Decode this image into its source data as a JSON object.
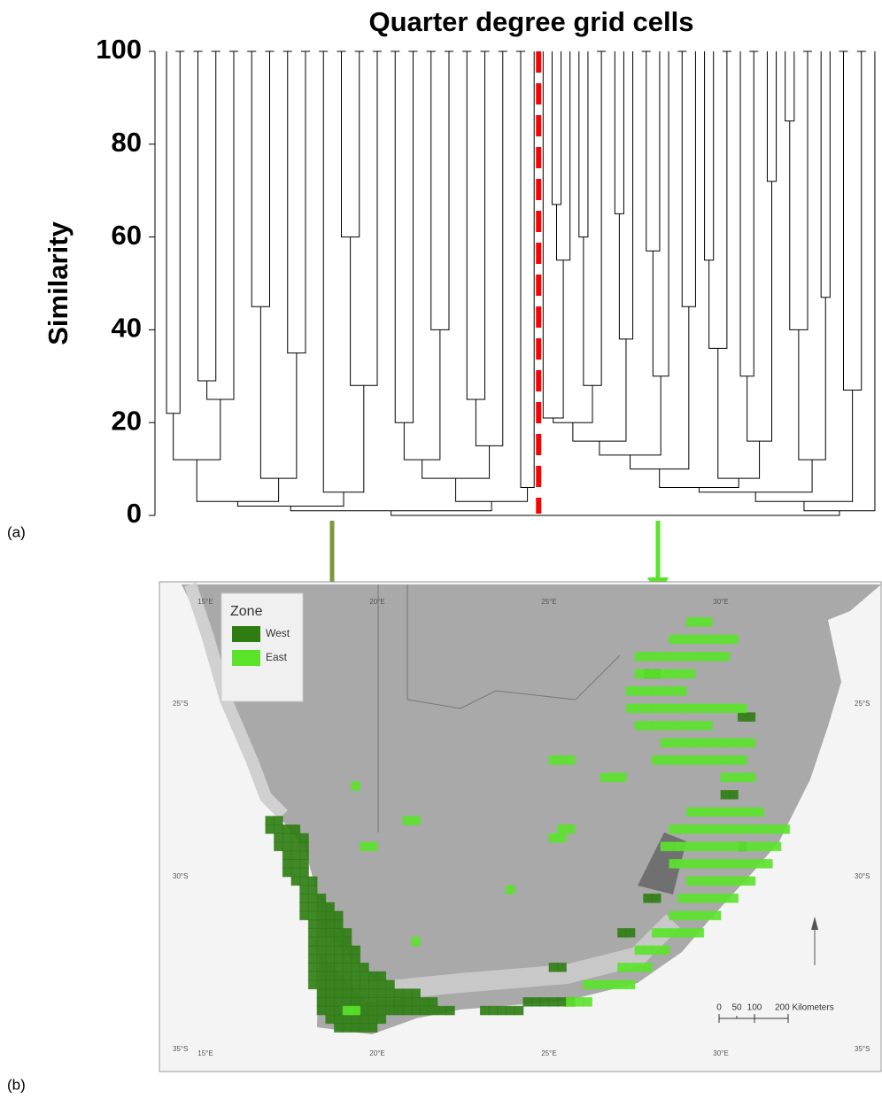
{
  "chart_data": {
    "type": "dendrogram",
    "title": "Quarter degree grid cells",
    "ylabel": "Similarity",
    "ylim": [
      0,
      100
    ],
    "yticks": [
      0,
      20,
      40,
      60,
      80,
      100
    ],
    "line_color": "#000000",
    "cut_color": "#ff0000",
    "merge_heights": [
      22,
      100,
      12,
      100,
      29,
      100,
      25,
      100,
      3,
      100,
      45,
      100,
      8,
      100,
      35,
      100,
      2,
      100,
      5,
      100,
      60,
      100,
      28,
      100,
      1,
      100,
      20,
      100,
      12,
      100,
      40,
      100,
      8,
      100,
      25,
      100,
      15,
      100,
      3,
      100,
      6,
      0,
      21,
      67,
      55,
      20,
      60,
      28,
      100,
      16,
      65,
      38,
      13,
      100,
      57,
      30,
      10,
      100,
      45,
      6,
      55,
      36,
      100,
      8,
      30,
      100,
      16,
      72,
      5,
      85,
      40,
      100,
      12,
      47,
      3,
      100,
      27,
      100,
      1
    ]
  },
  "panel_labels": [
    "(a)",
    "(b)"
  ],
  "map": {
    "legend_title": "Zone",
    "zones": [
      {
        "name": "West",
        "color": "#2e7d12",
        "rows": [
          [
            -28.25,
            16.75,
            17.0
          ],
          [
            -28.5,
            16.75,
            17.5
          ],
          [
            -28.75,
            17.0,
            17.75
          ],
          [
            -29.0,
            17.0,
            17.75
          ],
          [
            -29.25,
            17.25,
            17.75
          ],
          [
            -29.5,
            17.25,
            17.75
          ],
          [
            -29.75,
            17.25,
            17.75
          ],
          [
            -30.0,
            17.5,
            18.0
          ],
          [
            -30.25,
            17.75,
            18.0
          ],
          [
            -30.5,
            17.75,
            18.25
          ],
          [
            -30.75,
            17.75,
            18.5
          ],
          [
            -31.0,
            17.75,
            18.75
          ],
          [
            -31.25,
            18.0,
            18.75
          ],
          [
            -31.5,
            18.0,
            19.0
          ],
          [
            -31.75,
            18.0,
            19.0
          ],
          [
            -32.0,
            18.0,
            19.25
          ],
          [
            -32.25,
            18.0,
            19.25
          ],
          [
            -32.5,
            18.0,
            19.5
          ],
          [
            -32.75,
            18.0,
            20.0
          ],
          [
            -33.0,
            18.0,
            20.25
          ],
          [
            -33.25,
            18.25,
            21.0
          ],
          [
            -33.5,
            18.25,
            21.5
          ],
          [
            -33.75,
            18.25,
            22.0
          ],
          [
            -34.0,
            18.5,
            20.0
          ],
          [
            -34.25,
            18.75,
            19.75
          ],
          [
            -33.75,
            23.0,
            24.0
          ],
          [
            -33.5,
            24.25,
            25.5
          ],
          [
            -32.5,
            25.0,
            25.25
          ],
          [
            -31.5,
            27.0,
            27.25
          ],
          [
            -30.5,
            27.75,
            28.0
          ],
          [
            -29.0,
            30.5,
            30.5
          ],
          [
            -27.5,
            30.0,
            30.25
          ],
          [
            -24.0,
            27.75,
            28.0
          ],
          [
            -25.25,
            30.5,
            30.75
          ]
        ]
      },
      {
        "name": "East",
        "color": "#5be32b",
        "rows": [
          [
            -22.5,
            29.0,
            29.5
          ],
          [
            -23.0,
            28.5,
            30.25
          ],
          [
            -23.5,
            27.5,
            30.0
          ],
          [
            -24.0,
            27.5,
            29.0
          ],
          [
            -24.5,
            27.25,
            28.75
          ],
          [
            -25.0,
            27.25,
            30.5
          ],
          [
            -25.5,
            27.5,
            29.5
          ],
          [
            -26.0,
            28.25,
            30.75
          ],
          [
            -26.5,
            28.0,
            30.5
          ],
          [
            -27.0,
            30.0,
            30.75
          ],
          [
            -28.0,
            29.0,
            31.0
          ],
          [
            -28.5,
            28.5,
            31.75
          ],
          [
            -29.0,
            28.25,
            31.5
          ],
          [
            -29.5,
            28.5,
            31.25
          ],
          [
            -30.0,
            29.0,
            30.75
          ],
          [
            -30.5,
            28.75,
            30.25
          ],
          [
            -31.0,
            28.5,
            29.75
          ],
          [
            -31.5,
            28.0,
            29.25
          ],
          [
            -32.0,
            27.5,
            28.25
          ],
          [
            -32.5,
            27.0,
            27.75
          ],
          [
            -33.0,
            26.0,
            27.25
          ],
          [
            -33.5,
            25.5,
            26.0
          ],
          [
            -26.5,
            25.0,
            25.5
          ],
          [
            -27.0,
            26.5,
            27.0
          ],
          [
            -27.25,
            19.25,
            19.25
          ],
          [
            -28.25,
            20.75,
            21.0
          ],
          [
            -29.0,
            19.5,
            19.75
          ],
          [
            -28.75,
            25.0,
            25.25
          ],
          [
            -28.5,
            25.25,
            25.5
          ],
          [
            -30.25,
            23.75,
            23.75
          ],
          [
            -31.75,
            21.0,
            21.0
          ],
          [
            -33.75,
            19.0,
            19.25
          ]
        ]
      }
    ],
    "lon_labels": [
      {
        "value": 15,
        "label": "15°E"
      },
      {
        "value": 20,
        "label": "20°E"
      },
      {
        "value": 25,
        "label": "25°E"
      },
      {
        "value": 30,
        "label": "30°E"
      }
    ],
    "lat_labels": [
      {
        "value": -25,
        "label": "25°S"
      },
      {
        "value": -30,
        "label": "30°S"
      },
      {
        "value": -35,
        "label": "35°S"
      }
    ],
    "scale_bar": [
      "0",
      "50",
      "100",
      "200 Kilometers"
    ]
  }
}
